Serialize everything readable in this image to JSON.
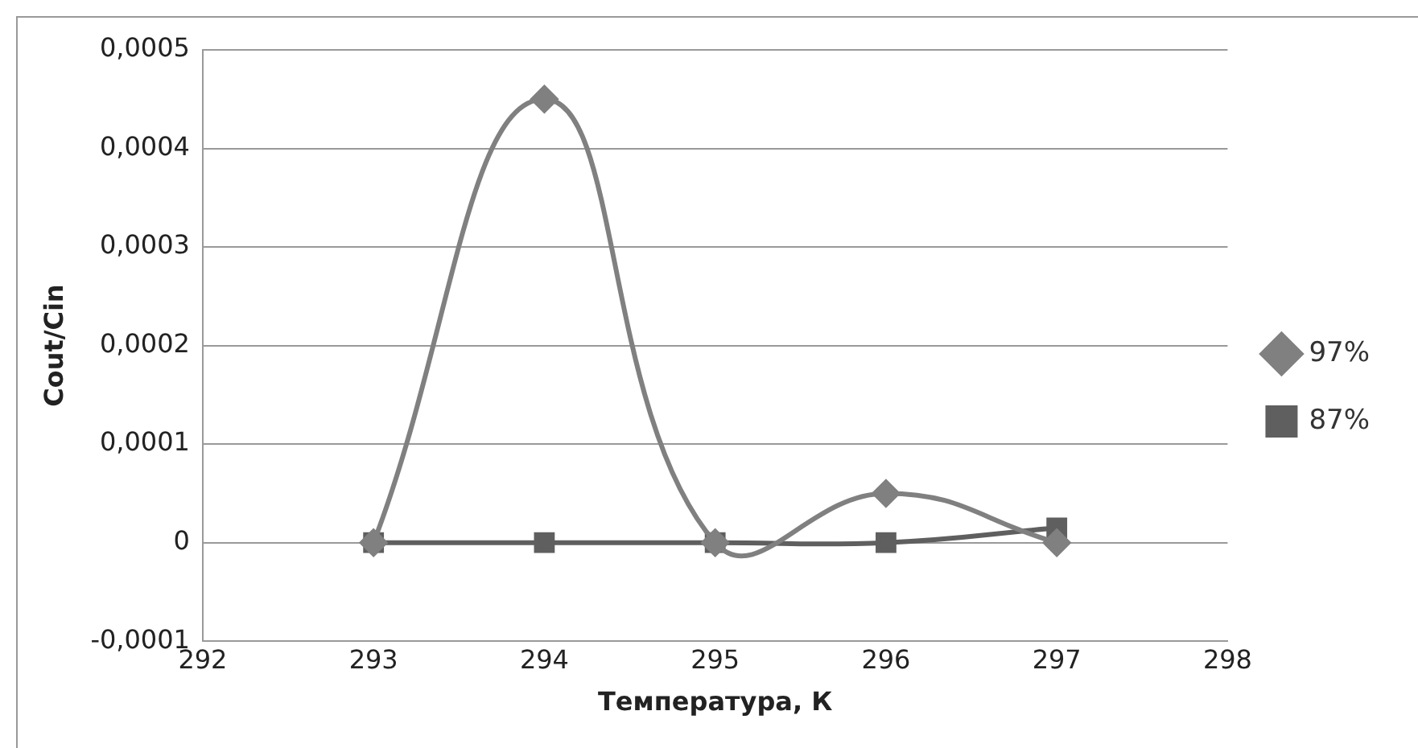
{
  "chart_data": {
    "type": "line",
    "xlabel": "Температура, К",
    "ylabel": "Cout/Cin",
    "x": [
      293,
      294,
      295,
      296,
      297
    ],
    "series": [
      {
        "name": "97%",
        "color": "#808080",
        "marker": "diamond",
        "values": [
          0,
          0.00045,
          0,
          5e-05,
          0
        ]
      },
      {
        "name": "87%",
        "color": "#5f5f5f",
        "marker": "square",
        "values": [
          0,
          0,
          0,
          0,
          1.5e-05
        ]
      }
    ],
    "xlim": [
      292,
      298
    ],
    "xticks": [
      292,
      293,
      294,
      295,
      296,
      297,
      298
    ],
    "ylim": [
      -0.0001,
      0.0005
    ],
    "yticks": [
      {
        "value": -0.0001,
        "label": "-0,0001"
      },
      0,
      {
        "value": 0.0001,
        "label": "0,0001"
      },
      {
        "value": 0.0002,
        "label": "0,0002"
      },
      {
        "value": 0.0003,
        "label": "0,0003"
      },
      {
        "value": 0.0004,
        "label": "0,0004"
      },
      {
        "value": 0.0005,
        "label": "0,0005"
      }
    ],
    "grid": "y",
    "legend": "right"
  }
}
